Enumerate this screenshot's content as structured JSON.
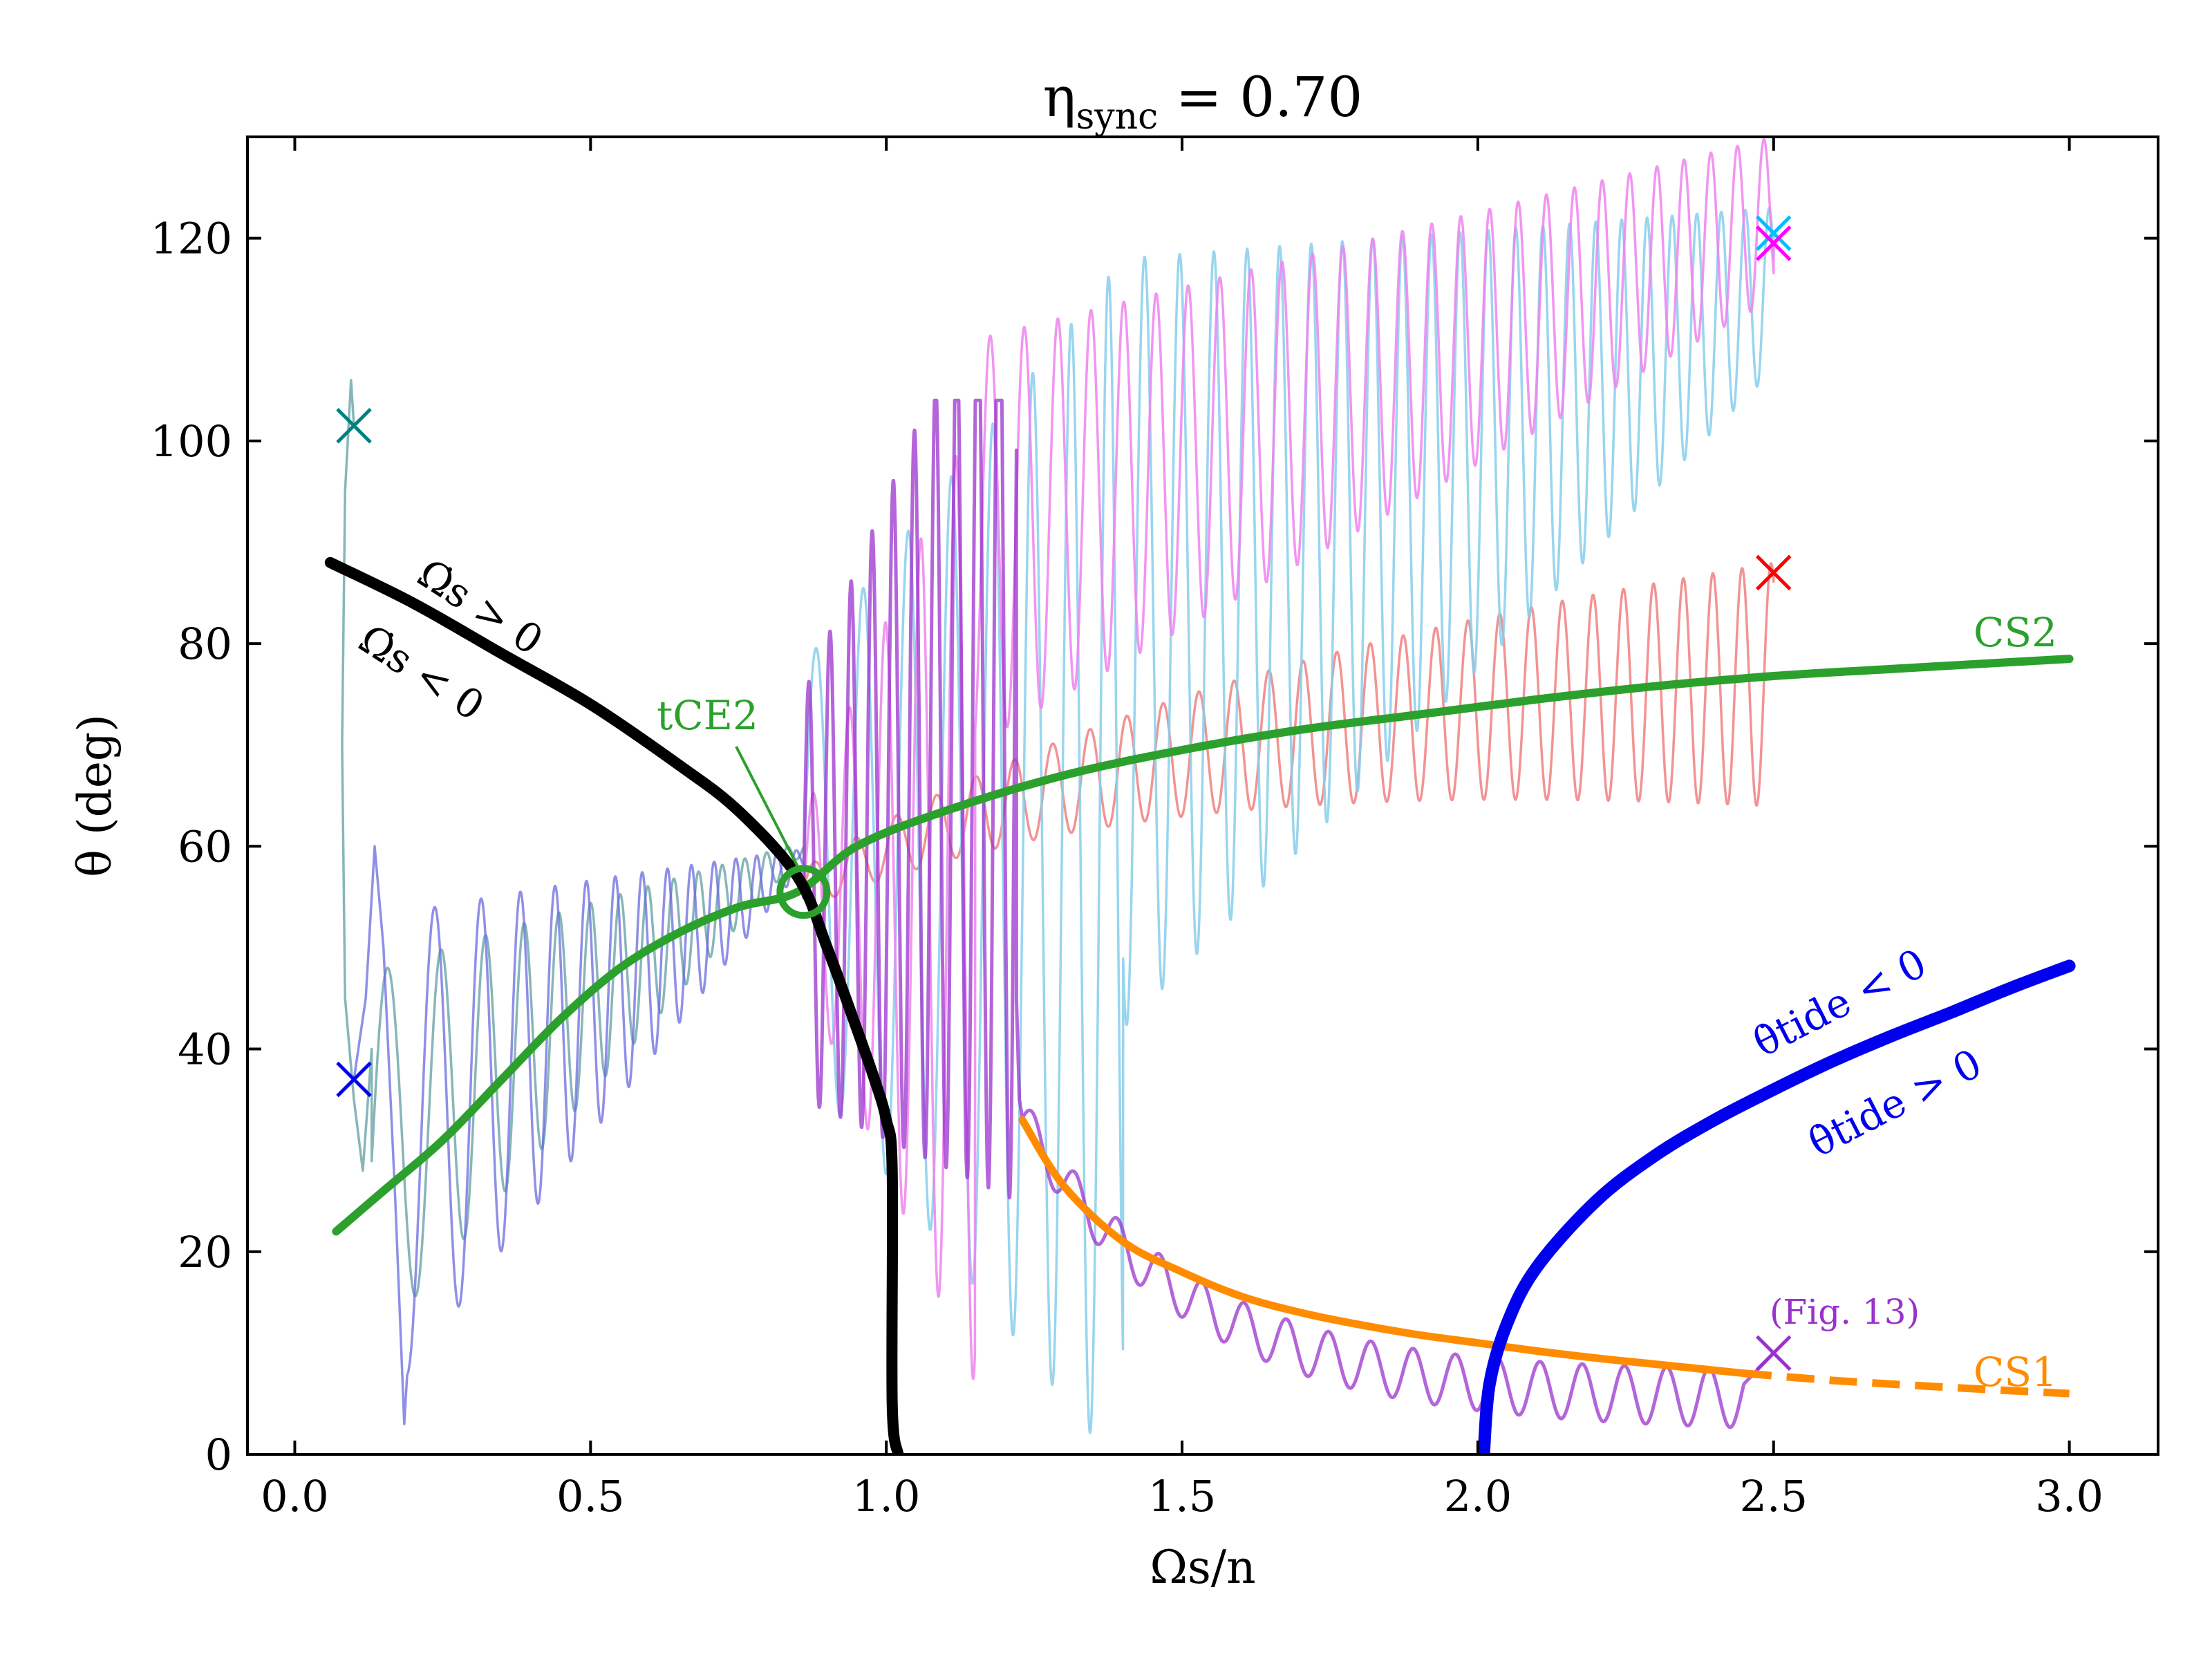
{
  "chart_data": {
    "type": "line",
    "title": "ηsync = 0.70",
    "xlabel": "Ωs/n",
    "ylabel": "θ (deg)",
    "xlim": [
      -0.08,
      3.15
    ],
    "ylim": [
      0,
      130
    ],
    "xticks": [
      0.0,
      0.5,
      1.0,
      1.5,
      2.0,
      2.5,
      3.0
    ],
    "xtick_labels": [
      "0.0",
      "0.5",
      "1.0",
      "1.5",
      "2.0",
      "2.5",
      "3.0"
    ],
    "yticks": [
      0,
      20,
      40,
      60,
      80,
      100,
      120
    ],
    "ytick_labels": [
      "0",
      "20",
      "40",
      "60",
      "80",
      "100",
      "120"
    ],
    "grid": false,
    "colors": {
      "cs2": "#2ca02c",
      "cs1": "#ff8c00",
      "omega_boundary": "#000000",
      "theta_tide_boundary": "#0000ee",
      "traj_red": "#f08080",
      "traj_skyblue": "#87ceeb",
      "traj_pink": "#ee82ee",
      "traj_purple": "#9932cc",
      "traj_teal": "#5f9ea0",
      "traj_blue": "#6a6adf"
    },
    "series": [
      {
        "key": "cs2",
        "x": [
          0.07,
          0.15,
          0.25,
          0.35,
          0.45,
          0.55,
          0.65,
          0.75,
          0.85,
          0.95,
          1.1,
          1.3,
          1.5,
          1.7,
          1.9,
          2.1,
          2.3,
          2.5,
          2.7,
          3.0
        ],
        "y": [
          22,
          26,
          31,
          37,
          43,
          48,
          51.5,
          54,
          55.5,
          60,
          63.5,
          67,
          69.5,
          71.5,
          73,
          74.5,
          75.8,
          76.8,
          77.5,
          78.5
        ]
      },
      {
        "key": "cs1",
        "x": [
          1.23,
          1.3,
          1.4,
          1.5,
          1.6,
          1.7,
          1.8,
          1.9,
          2.0,
          2.1,
          2.2,
          2.3,
          2.45
        ],
        "y": [
          33,
          26.5,
          21,
          18,
          15.6,
          14,
          12.8,
          11.8,
          11,
          10.2,
          9.5,
          8.9,
          8
        ]
      },
      {
        "key": "cs1_dashed",
        "x": [
          2.45,
          2.6,
          2.8,
          3.0
        ],
        "y": [
          8,
          7.3,
          6.6,
          6
        ]
      },
      {
        "key": "omega_boundary",
        "x": [
          0.06,
          0.2,
          0.35,
          0.5,
          0.65,
          0.75,
          0.85,
          0.9,
          0.95,
          0.98,
          1.0,
          1.01,
          1.01,
          1.02
        ],
        "y": [
          88,
          84,
          79,
          74,
          68,
          63.5,
          57,
          50,
          42,
          37,
          33,
          28,
          5,
          0
        ]
      },
      {
        "key": "theta_tide_boundary",
        "x": [
          2.01,
          2.02,
          2.05,
          2.1,
          2.2,
          2.3,
          2.4,
          2.5,
          2.6,
          2.7,
          2.8,
          2.9,
          3.0
        ],
        "y": [
          0,
          7,
          13,
          18.5,
          25,
          29.5,
          33,
          36,
          38.8,
          41.3,
          43.6,
          46,
          48.2
        ]
      }
    ],
    "markers": [
      {
        "x": 0.1,
        "y": 101.5,
        "color": "#008080"
      },
      {
        "x": 0.1,
        "y": 37,
        "color": "#0000ee"
      },
      {
        "x": 2.5,
        "y": 87,
        "color": "#ff0000"
      },
      {
        "x": 2.5,
        "y": 120.5,
        "color": "#00bfff"
      },
      {
        "x": 2.5,
        "y": 119.5,
        "color": "#ff00ff"
      },
      {
        "x": 2.5,
        "y": 10,
        "color": "#9932cc"
      }
    ],
    "annotations": {
      "omega_pos": "Ω̇s > 0",
      "omega_neg": "Ω̇s < 0",
      "tide_neg": "θ̇tide < 0",
      "tide_pos": "θ̇tide > 0",
      "tce2": "tCE2",
      "cs2": "CS2",
      "cs1": "CS1",
      "fig13": "(Fig. 13)"
    }
  }
}
